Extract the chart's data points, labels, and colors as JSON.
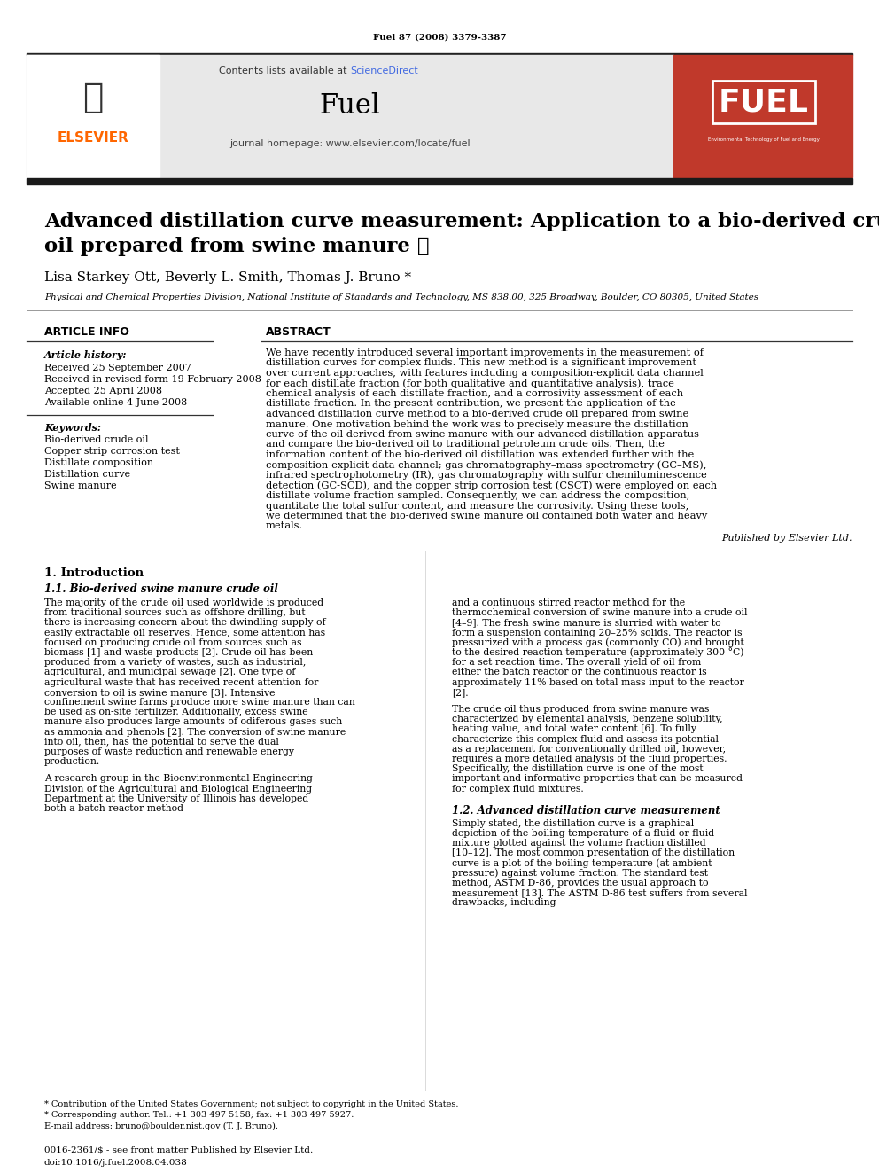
{
  "journal_ref": "Fuel 87 (2008) 3379-3387",
  "journal_name": "Fuel",
  "journal_homepage": "journal homepage: www.elsevier.com/locate/fuel",
  "contents_line": "Contents lists available at ScienceDirect",
  "sciencedirect_text": "ScienceDirect",
  "title_line1": "Advanced distillation curve measurement: Application to a bio-derived crude",
  "title_line2": "oil prepared from swine manure",
  "title_star": "★",
  "authors": "Lisa Starkey Ott, Beverly L. Smith, Thomas J. Bruno",
  "authors_star": "*",
  "affiliation": "Physical and Chemical Properties Division, National Institute of Standards and Technology, MS 838.00, 325 Broadway, Boulder, CO 80305, United States",
  "section_article_info": "ARTICLE INFO",
  "section_abstract": "ABSTRACT",
  "article_history_label": "Article history:",
  "received1": "Received 25 September 2007",
  "received2": "Received in revised form 19 February 2008",
  "accepted": "Accepted 25 April 2008",
  "available": "Available online 4 June 2008",
  "keywords_label": "Keywords:",
  "keywords": [
    "Bio-derived crude oil",
    "Copper strip corrosion test",
    "Distillate composition",
    "Distillation curve",
    "Swine manure"
  ],
  "abstract_text": "We have recently introduced several important improvements in the measurement of distillation curves for complex fluids. This new method is a significant improvement over current approaches, with features including a composition-explicit data channel for each distillate fraction (for both qualitative and quantitative analysis), trace chemical analysis of each distillate fraction, and a corrosivity assessment of each distillate fraction. In the present contribution, we present the application of the advanced distillation curve method to a bio-derived crude oil prepared from swine manure. One motivation behind the work was to precisely measure the distillation curve of the oil derived from swine manure with our advanced distillation apparatus and compare the bio-derived oil to traditional petroleum crude oils. Then, the information content of the bio-derived oil distillation was extended further with the composition-explicit data channel; gas chromatography–mass spectrometry (GC–MS), infrared spectrophotometry (IR), gas chromatography with sulfur chemiluminescence detection (GC-SCD), and the copper strip corrosion test (CSCT) were employed on each distillate volume fraction sampled. Consequently, we can address the composition, quantitate the total sulfur content, and measure the corrosivity. Using these tools, we determined that the bio-derived swine manure oil contained both water and heavy metals.",
  "published_by": "Published by Elsevier Ltd.",
  "section1": "1. Introduction",
  "section11": "1.1. Bio-derived swine manure crude oil",
  "intro_col1_para1": "The majority of the crude oil used worldwide is produced from traditional sources such as offshore drilling, but there is increasing concern about the dwindling supply of easily extractable oil reserves. Hence, some attention has focused on producing crude oil from sources such as biomass [1] and waste products [2]. Crude oil has been produced from a variety of wastes, such as industrial, agricultural, and municipal sewage [2]. One type of agricultural waste that has received recent attention for conversion to oil is swine manure [3]. Intensive confinement swine farms produce more swine manure than can be used as on-site fertilizer. Additionally, excess swine manure also produces large amounts of odiferous gases such as ammonia and phenols [2]. The conversion of swine manure into oil, then, has the potential to serve the dual purposes of waste reduction and renewable energy production.",
  "intro_col1_para2": "A research group in the Bioenvironmental Engineering Division of the Agricultural and Biological Engineering Department at the University of Illinois has developed both a batch reactor method",
  "intro_col2_para1": "and a continuous stirred reactor method for the thermochemical conversion of swine manure into a crude oil [4–9]. The fresh swine manure is slurried with water to form a suspension containing 20–25% solids. The reactor is pressurized with a process gas (commonly CO) and brought to the desired reaction temperature (approximately 300 °C) for a set reaction time. The overall yield of oil from either the batch reactor or the continuous reactor is approximately 11% based on total mass input to the reactor [2].",
  "intro_col2_para2": "The crude oil thus produced from swine manure was characterized by elemental analysis, benzene solubility, heating value, and total water content [6]. To fully characterize this complex fluid and assess its potential as a replacement for conventionally drilled oil, however, requires a more detailed analysis of the fluid properties. Specifically, the distillation curve is one of the most important and informative properties that can be measured for complex fluid mixtures.",
  "section12": "1.2. Advanced distillation curve measurement",
  "intro_col2_para3": "Simply stated, the distillation curve is a graphical depiction of the boiling temperature of a fluid or fluid mixture plotted against the volume fraction distilled [10–12]. The most common presentation of the distillation curve is a plot of the boiling temperature (at ambient pressure) against volume fraction. The standard test method, ASTM D-86, provides the usual approach to measurement [13]. The ASTM D-86 test suffers from several drawbacks, including",
  "footnote_star": "* Contribution of the United States Government; not subject to copyright in the United States.",
  "footnote_corresponding": "* Corresponding author. Tel.: +1 303 497 5158; fax: +1 303 497 5927.",
  "footnote_email": "E-mail address: bruno@boulder.nist.gov (T. J. Bruno).",
  "footer_issn": "0016-2361/$ - see front matter Published by Elsevier Ltd.",
  "footer_doi": "doi:10.1016/j.fuel.2008.04.038",
  "elsevier_color": "#FF6600",
  "sciencedirect_color": "#4169E1",
  "header_bg": "#E8E8E8",
  "fuel_cover_bg": "#C0392B",
  "black_bar_color": "#1a1a1a",
  "page_bg": "#FFFFFF",
  "text_color": "#000000",
  "link_color": "#4169E1"
}
